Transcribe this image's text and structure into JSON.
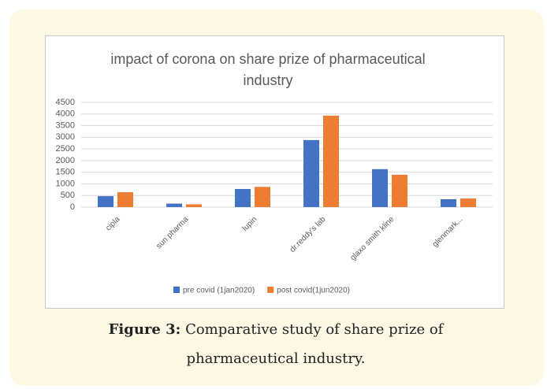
{
  "chart_data": {
    "type": "bar",
    "title": "impact of corona on share prize of pharmaceutical industry",
    "categories": [
      "cipla",
      "sun pharma",
      "lupin",
      "dr.reddy's lab",
      "glaxo smith kline",
      "glenmark..."
    ],
    "series": [
      {
        "name": "pre covid (1jan2020)",
        "color": "#4472c4",
        "values": [
          470,
          150,
          780,
          2880,
          1630,
          340
        ]
      },
      {
        "name": "post covid(1jun2020)",
        "color": "#ed7d31",
        "values": [
          640,
          120,
          870,
          3930,
          1390,
          370
        ]
      }
    ],
    "ylim": [
      0,
      4500
    ],
    "yticks": [
      0,
      500,
      1000,
      1500,
      2000,
      2500,
      3000,
      3500,
      4000,
      4500
    ],
    "grid": true,
    "legend": "bottom"
  },
  "caption": {
    "label": "Figure 3:",
    "text": "Comparative study of share prize of pharmaceutical industry."
  }
}
